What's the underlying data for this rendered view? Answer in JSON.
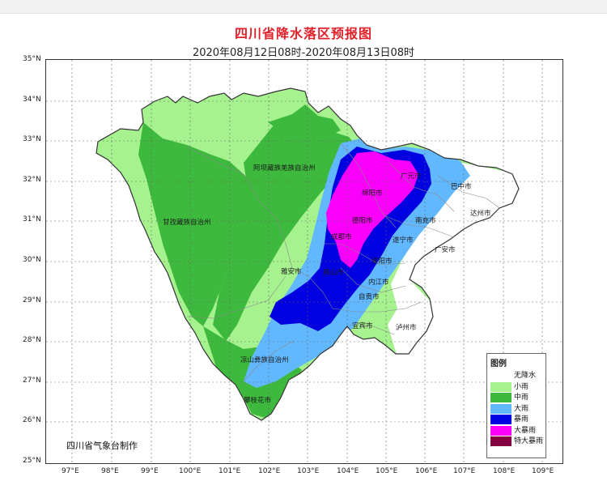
{
  "map": {
    "title": "四川省降水落区预报图",
    "subtitle": "2020年08月12日08时-2020年08月13日08时",
    "credit": "四川省气象台制作",
    "lat_labels": [
      "35°N",
      "34°N",
      "33°N",
      "32°N",
      "31°N",
      "30°N",
      "29°N",
      "28°N",
      "27°N",
      "26°N",
      "25°N"
    ],
    "lon_labels": [
      "97°E",
      "98°E",
      "99°E",
      "100°E",
      "101°E",
      "102°E",
      "103°E",
      "104°E",
      "105°E",
      "106°E",
      "107°E",
      "108°E",
      "109°E"
    ],
    "regions": [
      {
        "key": "aba",
        "label": "阿坝藏族羌族自治州"
      },
      {
        "key": "ganzi",
        "label": "甘孜藏族自治州"
      },
      {
        "key": "liangshan",
        "label": "凉山彝族自治州"
      },
      {
        "key": "panzhihua",
        "label": "攀枝花市"
      },
      {
        "key": "guangyuan",
        "label": "广元市"
      },
      {
        "key": "mianyang",
        "label": "绵阳市"
      },
      {
        "key": "bazhong",
        "label": "巴中市"
      },
      {
        "key": "dazhou",
        "label": "达州市"
      },
      {
        "key": "nanchong",
        "label": "南充市"
      },
      {
        "key": "deyang",
        "label": "德阳市"
      },
      {
        "key": "chengdu",
        "label": "成都市"
      },
      {
        "key": "suining",
        "label": "遂宁市"
      },
      {
        "key": "guangan",
        "label": "广安市"
      },
      {
        "key": "yaan",
        "label": "雅安市"
      },
      {
        "key": "meishan",
        "label": "眉山市"
      },
      {
        "key": "ziyang",
        "label": "资阳市"
      },
      {
        "key": "neijiang",
        "label": "内江市"
      },
      {
        "key": "zigong",
        "label": "自贡市"
      },
      {
        "key": "yibin",
        "label": "宜宾市"
      },
      {
        "key": "luzhou",
        "label": "泸州市"
      }
    ]
  },
  "legend": {
    "title": "图例",
    "items": [
      {
        "label": "无降水",
        "color": "#ffffff"
      },
      {
        "label": "小雨",
        "color": "#a6f28f"
      },
      {
        "label": "中雨",
        "color": "#3dba3d"
      },
      {
        "label": "大雨",
        "color": "#61b8ff"
      },
      {
        "label": "暴雨",
        "color": "#0000e1"
      },
      {
        "label": "大暴雨",
        "color": "#fa00fa"
      },
      {
        "label": "特大暴雨",
        "color": "#810040"
      }
    ]
  }
}
